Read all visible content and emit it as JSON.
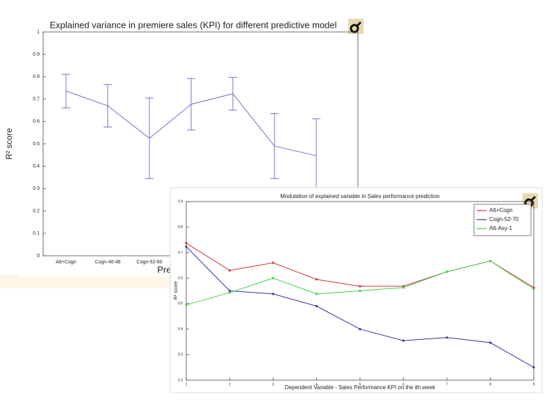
{
  "chart_data": [
    {
      "type": "line",
      "title": "Explained variance in premiere sales (KPI) for different predictive model",
      "xlabel": "Pred",
      "ylabel": "R² score",
      "categories": [
        "Att+Cogn",
        "Cogn-40-48",
        "Cogn-52-60",
        null,
        null,
        null,
        null
      ],
      "values": [
        0.736,
        0.67,
        0.525,
        0.677,
        0.724,
        0.49,
        0.447
      ],
      "errors": [
        0.075,
        0.095,
        0.18,
        0.115,
        0.073,
        0.145,
        0.165
      ],
      "color": "#7070c8",
      "ylim": [
        0,
        1
      ],
      "yticks": [
        0,
        0.1,
        0.2,
        0.3,
        0.4,
        0.5,
        0.6,
        0.7,
        0.8,
        0.9,
        1
      ]
    },
    {
      "type": "line",
      "title": "Modulation of explained variable in Sales performance prediction",
      "xlabel": "Dependent Variable - Sales Performance KPI on the ith week",
      "ylabel": "R² score",
      "x": [
        1,
        2,
        3,
        4,
        5,
        6,
        7,
        8,
        9
      ],
      "series": [
        {
          "name": "Att+Cogn",
          "color": "#d03030",
          "values": [
            0.737,
            0.63,
            0.66,
            0.595,
            0.568,
            0.568,
            0.625,
            0.667,
            0.563
          ]
        },
        {
          "name": "Cogn-52-70",
          "color": "#3030a0",
          "values": [
            0.723,
            0.55,
            0.538,
            0.49,
            0.4,
            0.355,
            0.367,
            0.347,
            0.25
          ]
        },
        {
          "name": "Att-Asy-1",
          "color": "#40d040",
          "values": [
            0.495,
            0.543,
            0.6,
            0.538,
            0.55,
            0.563,
            0.625,
            0.667,
            0.557
          ]
        }
      ],
      "xlim": [
        1,
        9
      ],
      "xticks": [
        1,
        2,
        3,
        4,
        5,
        6,
        7,
        8,
        9
      ],
      "ylim": [
        0.2,
        0.9
      ],
      "yticks": [
        0.2,
        0.3,
        0.4,
        0.5,
        0.6,
        0.7,
        0.8,
        0.9
      ],
      "legend": "northeast"
    }
  ]
}
